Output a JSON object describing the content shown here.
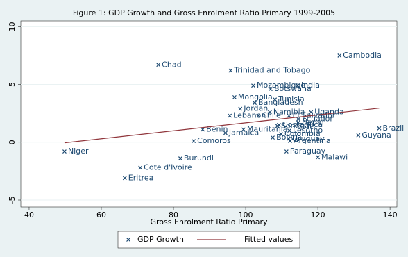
{
  "chart_data": {
    "type": "scatter",
    "title": "Figure 1:  GDP Growth and Gross Enrolment Ratio Primary 1999-2005",
    "x_label": "Gross Enrolment Ratio Primary",
    "xlim": [
      37.7,
      141.9
    ],
    "xticks": [
      40,
      60,
      80,
      100,
      120,
      140
    ],
    "ylim": [
      -5.6,
      10.5
    ],
    "yticks": [
      -5,
      0,
      5,
      10
    ],
    "grid": true,
    "series": [
      {
        "name": "GDP Growth",
        "color": "#1a476f",
        "type": "scatter",
        "labels": [
          "Niger",
          "Chad",
          "Trinidad and Tobago",
          "Cambodia",
          "Mozambique",
          "India",
          "Botswana",
          "Mongolia",
          "Tunisia",
          "Bangladesh",
          "Jordan",
          "Uganda",
          "Namibia",
          "Lebanon",
          "Chile",
          "El Salvador",
          "Ecuador",
          "Nepal",
          "Costa Rica",
          "Senegal",
          "Mauritania",
          "Lesotho",
          "Benin",
          "Jamaica",
          "Colombia",
          "Guyana",
          "Brazil",
          "Bolivia",
          "Uruguay",
          "Argentina",
          "Comoros",
          "Paraguay",
          "Malawi",
          "Burundi",
          "Cote d'Ivoire",
          "Eritrea"
        ],
        "x": [
          49.8,
          75.8,
          95.8,
          126.0,
          102.1,
          114.4,
          106.9,
          96.9,
          108.1,
          102.5,
          98.5,
          118.1,
          106.7,
          95.6,
          103.5,
          112.0,
          114.6,
          114.6,
          109.2,
          108.8,
          99.4,
          112.1,
          88.1,
          94.4,
          109.8,
          131.2,
          137.0,
          107.5,
          111.9,
          112.3,
          85.6,
          111.3,
          120.0,
          81.9,
          70.8,
          66.5
        ],
        "values": [
          -0.8,
          6.7,
          6.2,
          7.5,
          4.9,
          4.9,
          4.6,
          3.9,
          3.7,
          3.4,
          2.9,
          2.6,
          2.6,
          2.3,
          2.3,
          2.3,
          2.0,
          1.7,
          1.5,
          1.4,
          1.1,
          1.0,
          1.1,
          0.8,
          0.7,
          0.6,
          1.2,
          0.4,
          0.3,
          0.1,
          0.1,
          -0.8,
          -1.3,
          -1.4,
          -2.2,
          -3.1
        ]
      },
      {
        "name": "Fitted values",
        "color": "#90353b",
        "type": "line",
        "x": [
          49.8,
          137.0
        ],
        "values": [
          -0.05,
          2.95
        ]
      }
    ]
  }
}
